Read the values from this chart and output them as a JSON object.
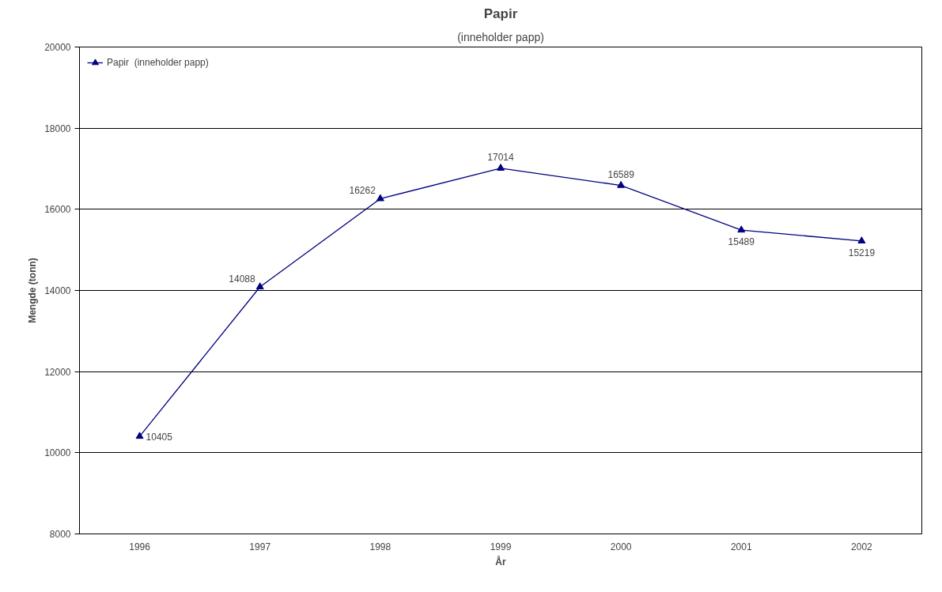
{
  "chart_data": {
    "type": "line",
    "title": "Papir",
    "subtitle": "(inneholder papp)",
    "xlabel": "År",
    "ylabel": "Mengde (tonn)",
    "categories": [
      "1996",
      "1997",
      "1998",
      "1999",
      "2000",
      "2001",
      "2002"
    ],
    "series": [
      {
        "name": "Papir  (inneholder papp)",
        "color": "#000080",
        "values": [
          10405,
          14088,
          16262,
          17014,
          16589,
          15489,
          15219
        ]
      }
    ],
    "ylim": [
      8000,
      20000
    ],
    "yticks": [
      8000,
      10000,
      12000,
      14000,
      16000,
      18000,
      20000
    ],
    "grid": "y",
    "legend": "top left",
    "marker": "triangle",
    "line_style": "solid",
    "data_labels": true
  }
}
